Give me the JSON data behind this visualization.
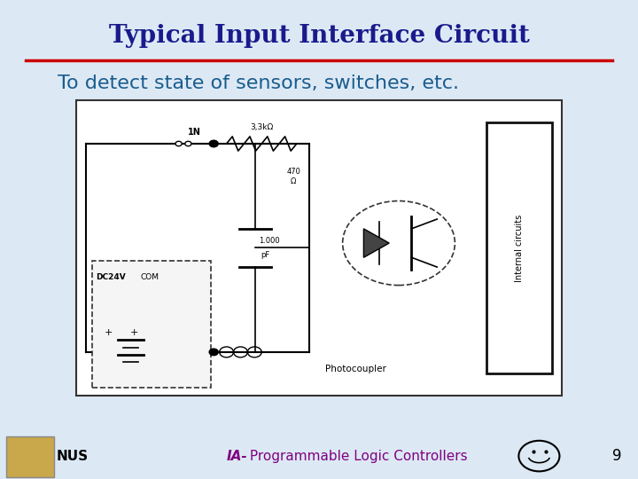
{
  "bg_color": "#dce9f5",
  "title": "Typical Input Interface Circuit",
  "title_color": "#1a1a8c",
  "title_fontsize": 20,
  "separator_color": "#cc0000",
  "subtitle": "To detect state of sensors, switches, etc.",
  "subtitle_color": "#1a5c8c",
  "subtitle_fontsize": 16,
  "footer_left": "NUS",
  "footer_center_italic": "IA-",
  "footer_center_main": " Programmable Logic Controllers",
  "footer_color": "#800080",
  "footer_nus_color": "#000000",
  "footer_fontsize": 11,
  "page_number": "9"
}
